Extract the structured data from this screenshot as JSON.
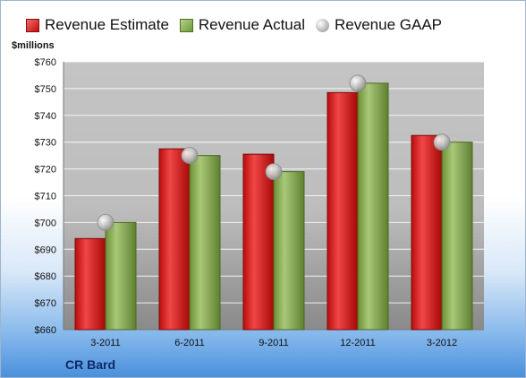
{
  "legend": {
    "estimate": "Revenue Estimate",
    "actual": "Revenue Actual",
    "gaap": "Revenue GAAP"
  },
  "unit_label": "$millions",
  "company": "CR Bard",
  "colors": {
    "estimate": "#d41c1c",
    "actual": "#8cb050",
    "gaap": "#bdbdbd"
  },
  "chart_data": {
    "type": "bar",
    "categories": [
      "3-2011",
      "6-2011",
      "9-2011",
      "12-2011",
      "3-2012"
    ],
    "series": [
      {
        "name": "Revenue Estimate",
        "values": [
          694,
          727.5,
          725.5,
          748.5,
          732.5
        ]
      },
      {
        "name": "Revenue Actual",
        "values": [
          700,
          725,
          719,
          752,
          730
        ]
      },
      {
        "name": "Revenue GAAP",
        "values": [
          700,
          725,
          719,
          752,
          730
        ]
      }
    ],
    "ylabel": "$millions",
    "ylim": [
      660,
      760
    ],
    "yticks": [
      "$660",
      "$670",
      "$680",
      "$690",
      "$700",
      "$710",
      "$720",
      "$730",
      "$740",
      "$750",
      "$760"
    ],
    "grid": true,
    "legend_position": "top"
  }
}
